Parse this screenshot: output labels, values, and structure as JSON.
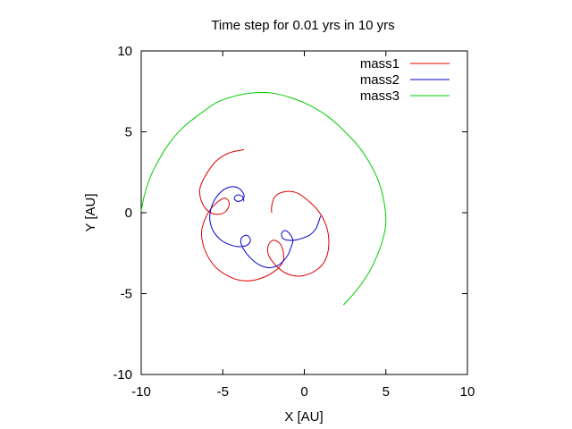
{
  "chart_data": {
    "type": "line",
    "title": "Time step for 0.01 yrs in 10 yrs",
    "xlabel": "X [AU]",
    "ylabel": "Y [AU]",
    "xlim": [
      -10,
      10
    ],
    "ylim": [
      -10,
      10
    ],
    "xticks": [
      -10,
      -5,
      0,
      5,
      10
    ],
    "yticks": [
      -10,
      -5,
      0,
      5,
      10
    ],
    "grid": false,
    "legend_position": "top-right",
    "series": [
      {
        "name": "mass1",
        "color": "#dd0000",
        "points": [
          [
            -3.7,
            3.9
          ],
          [
            -4.6,
            3.7
          ],
          [
            -5.4,
            3.2
          ],
          [
            -6.0,
            2.4
          ],
          [
            -6.4,
            1.5
          ],
          [
            -6.3,
            0.7
          ],
          [
            -5.9,
            0.1
          ],
          [
            -5.3,
            -0.1
          ],
          [
            -4.8,
            0.1
          ],
          [
            -4.6,
            0.6
          ],
          [
            -4.9,
            0.9
          ],
          [
            -5.5,
            0.5
          ],
          [
            -6.0,
            -0.2
          ],
          [
            -6.3,
            -1.2
          ],
          [
            -6.1,
            -2.3
          ],
          [
            -5.5,
            -3.3
          ],
          [
            -4.7,
            -3.9
          ],
          [
            -3.8,
            -4.2
          ],
          [
            -2.8,
            -4.1
          ],
          [
            -1.8,
            -3.6
          ],
          [
            -1.3,
            -3.0
          ],
          [
            -1.3,
            -2.4
          ],
          [
            -1.5,
            -1.9
          ],
          [
            -1.9,
            -1.7
          ],
          [
            -2.2,
            -2.0
          ],
          [
            -2.2,
            -2.6
          ],
          [
            -1.7,
            -3.3
          ],
          [
            -1.0,
            -3.8
          ],
          [
            -0.1,
            -3.9
          ],
          [
            0.8,
            -3.5
          ],
          [
            1.3,
            -2.9
          ],
          [
            1.5,
            -2.0
          ],
          [
            1.4,
            -1.0
          ],
          [
            1.0,
            -0.1
          ],
          [
            0.4,
            0.6
          ],
          [
            -0.4,
            1.2
          ],
          [
            -1.2,
            1.3
          ],
          [
            -1.8,
            1.0
          ],
          [
            -2.0,
            0.4
          ],
          [
            -2.0,
            0.0
          ]
        ]
      },
      {
        "name": "mass2",
        "color": "#0000cc",
        "points": [
          [
            -3.7,
            0.7
          ],
          [
            -3.8,
            1.0
          ],
          [
            -4.1,
            1.1
          ],
          [
            -4.3,
            0.9
          ],
          [
            -4.1,
            0.7
          ],
          [
            -3.8,
            0.8
          ],
          [
            -3.7,
            1.1
          ],
          [
            -4.0,
            1.5
          ],
          [
            -4.5,
            1.6
          ],
          [
            -5.1,
            1.3
          ],
          [
            -5.6,
            0.6
          ],
          [
            -5.8,
            -0.3
          ],
          [
            -5.6,
            -1.1
          ],
          [
            -5.1,
            -1.7
          ],
          [
            -4.5,
            -2.0
          ],
          [
            -4.0,
            -2.1
          ],
          [
            -3.5,
            -2.0
          ],
          [
            -3.3,
            -1.7
          ],
          [
            -3.5,
            -1.4
          ],
          [
            -3.8,
            -1.5
          ],
          [
            -3.9,
            -1.8
          ],
          [
            -3.7,
            -2.3
          ],
          [
            -3.3,
            -2.8
          ],
          [
            -2.8,
            -3.2
          ],
          [
            -2.2,
            -3.4
          ],
          [
            -1.7,
            -3.3
          ],
          [
            -1.3,
            -3.0
          ],
          [
            -1.0,
            -2.6
          ],
          [
            -0.8,
            -2.1
          ],
          [
            -0.7,
            -1.7
          ],
          [
            -0.9,
            -1.3
          ],
          [
            -1.2,
            -1.1
          ],
          [
            -1.4,
            -1.3
          ],
          [
            -1.3,
            -1.6
          ],
          [
            -1.0,
            -1.7
          ],
          [
            -0.6,
            -1.7
          ],
          [
            -0.2,
            -1.6
          ],
          [
            0.3,
            -1.4
          ],
          [
            0.7,
            -1.0
          ],
          [
            0.9,
            -0.5
          ],
          [
            1.0,
            -0.2
          ]
        ]
      },
      {
        "name": "mass3",
        "color": "#00cc00",
        "points": [
          [
            -10.0,
            0.1
          ],
          [
            -9.8,
            1.1
          ],
          [
            -9.4,
            2.3
          ],
          [
            -8.9,
            3.3
          ],
          [
            -8.2,
            4.4
          ],
          [
            -7.4,
            5.3
          ],
          [
            -6.4,
            6.1
          ],
          [
            -5.4,
            6.8
          ],
          [
            -4.3,
            7.2
          ],
          [
            -3.2,
            7.4
          ],
          [
            -2.0,
            7.4
          ],
          [
            -0.8,
            7.1
          ],
          [
            0.4,
            6.6
          ],
          [
            1.5,
            5.9
          ],
          [
            2.5,
            5.0
          ],
          [
            3.4,
            4.0
          ],
          [
            4.1,
            2.9
          ],
          [
            4.6,
            1.8
          ],
          [
            4.9,
            0.6
          ],
          [
            5.0,
            -0.6
          ],
          [
            4.8,
            -1.7
          ],
          [
            4.4,
            -2.8
          ],
          [
            3.9,
            -3.8
          ],
          [
            3.2,
            -4.8
          ],
          [
            2.4,
            -5.7
          ]
        ]
      }
    ]
  }
}
